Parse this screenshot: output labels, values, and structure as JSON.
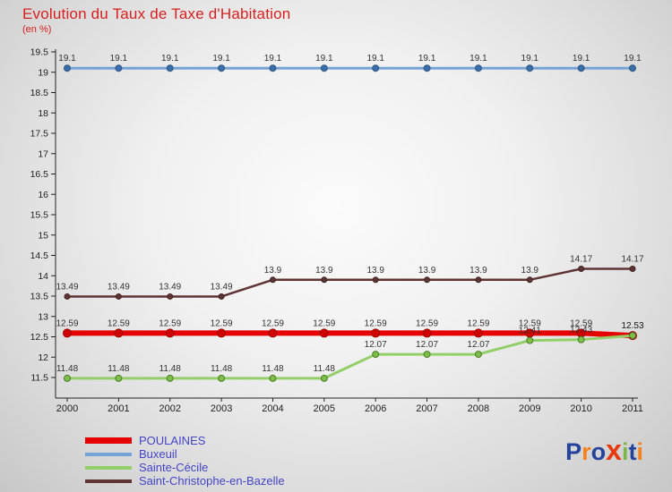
{
  "header": {
    "title": "Evolution du Taux de Taxe d'Habitation",
    "subtitle": "(en %)",
    "title_color": "#d91e1e"
  },
  "chart_data": {
    "type": "line",
    "x": [
      "2000",
      "2001",
      "2002",
      "2003",
      "2004",
      "2005",
      "2006",
      "2007",
      "2008",
      "2009",
      "2010",
      "2011"
    ],
    "xlabel": "",
    "ylabel": "",
    "ylim": [
      11,
      19.5
    ],
    "yticks": [
      11.5,
      12,
      12.5,
      13,
      13.5,
      14,
      14.5,
      15,
      15.5,
      16,
      16.5,
      17,
      17.5,
      18,
      18.5,
      19,
      19.5
    ],
    "grid": false,
    "legend_position": "bottom-left",
    "axis_color": "#222222",
    "tick_label_color": "#222222",
    "label_color": "#333333",
    "series": [
      {
        "name": "POULAINES",
        "line_color": "#e60000",
        "line_width": 6,
        "marker_color": "#cf0000",
        "marker_stroke": "#9e0000",
        "marker_radius": 4.5,
        "values": [
          12.59,
          12.59,
          12.59,
          12.59,
          12.59,
          12.59,
          12.59,
          12.59,
          12.59,
          12.59,
          12.59,
          12.53
        ]
      },
      {
        "name": "Buxeuil",
        "line_color": "#76a3d3",
        "line_width": 3,
        "marker_color": "#3b6ea8",
        "marker_stroke": "#2d5683",
        "marker_radius": 3.5,
        "values": [
          19.1,
          19.1,
          19.1,
          19.1,
          19.1,
          19.1,
          19.1,
          19.1,
          19.1,
          19.1,
          19.1,
          19.1
        ]
      },
      {
        "name": "Sainte-Cécile",
        "line_color": "#93cf68",
        "line_width": 3,
        "marker_color": "#7cbd4b",
        "marker_stroke": "#4c7d24",
        "marker_radius": 3.5,
        "values": [
          11.48,
          11.48,
          11.48,
          11.48,
          11.48,
          11.48,
          12.07,
          12.07,
          12.07,
          12.41,
          12.43,
          12.53
        ]
      },
      {
        "name": "Saint-Christophe-en-Bazelle",
        "line_color": "#5e3434",
        "line_width": 2.5,
        "marker_color": "#5e3434",
        "marker_stroke": "#402020",
        "marker_radius": 3,
        "values": [
          13.49,
          13.49,
          13.49,
          13.49,
          13.9,
          13.9,
          13.9,
          13.9,
          13.9,
          13.9,
          14.17,
          14.17
        ]
      }
    ],
    "draw_order": [
      1,
      3,
      0,
      2
    ]
  },
  "legend": {
    "text_color": "#4444c8"
  },
  "logo": {
    "text": "Proxiti",
    "letters": [
      {
        "char": "P",
        "color": "#24439b"
      },
      {
        "char": "r",
        "color": "#f5821f"
      },
      {
        "char": "o",
        "color": "#24439b"
      },
      {
        "char": "x",
        "color": "#e8380d"
      },
      {
        "char": "i",
        "color": "#7ab648"
      },
      {
        "char": "t",
        "color": "#24439b"
      },
      {
        "char": "i",
        "color": "#f5821f"
      }
    ]
  }
}
